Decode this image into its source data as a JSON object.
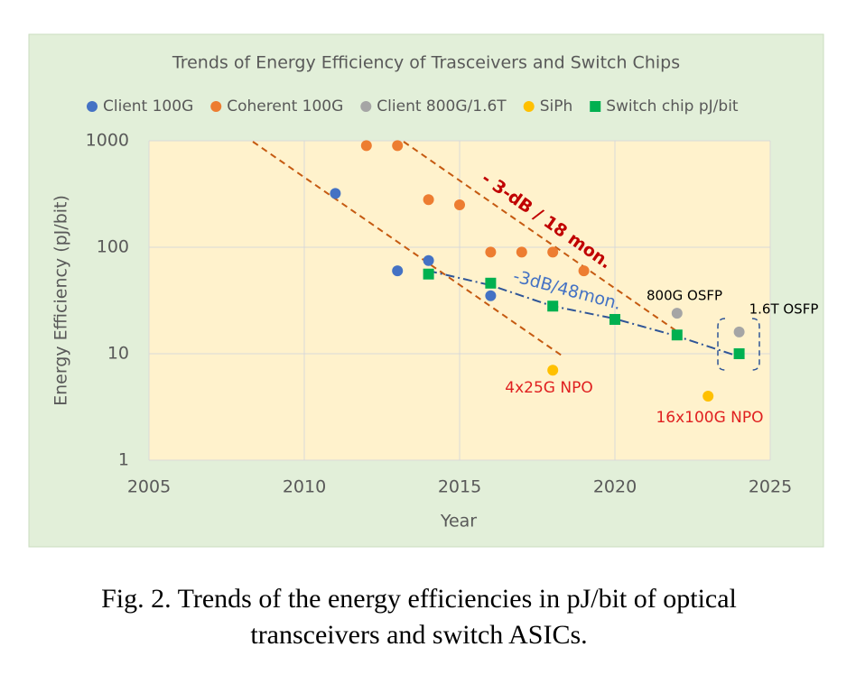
{
  "chart_data": {
    "type": "scatter",
    "title": "Trends of Energy Efficiency of Trasceivers and Switch Chips",
    "x_label": "Year",
    "y_label": "Energy Efficiency (pJ/bit)",
    "xlim": [
      2005,
      2025
    ],
    "xticks": [
      2005,
      2010,
      2015,
      2020,
      2025
    ],
    "ylim": [
      1,
      1000
    ],
    "yticks": [
      1,
      10,
      100,
      1000
    ],
    "log_y": true,
    "grid": true,
    "legend": "top",
    "series": [
      {
        "name": "Client 100G",
        "color": "#4472c4",
        "marker": "circle",
        "x": [
          2011,
          2013,
          2014,
          2016
        ],
        "values": [
          320,
          60,
          75,
          35
        ]
      },
      {
        "name": "Coherent 100G",
        "color": "#ed7d31",
        "marker": "circle",
        "x": [
          2012,
          2013,
          2014,
          2015,
          2016,
          2017,
          2018,
          2019
        ],
        "values": [
          900,
          900,
          280,
          250,
          90,
          90,
          90,
          60
        ]
      },
      {
        "name": "Client 800G/1.6T",
        "color": "#a5a5a5",
        "marker": "circle",
        "x": [
          2022,
          2024
        ],
        "values": [
          24,
          16
        ]
      },
      {
        "name": "SiPh",
        "color": "#ffc000",
        "marker": "circle",
        "x": [
          2018,
          2023
        ],
        "values": [
          7,
          4
        ]
      },
      {
        "name": "Switch chip pJ/bit",
        "color": "#00b050",
        "marker": "square",
        "x": [
          2014,
          2016,
          2018,
          2020,
          2022,
          2024
        ],
        "values": [
          56,
          46,
          28,
          21,
          15,
          10
        ]
      }
    ],
    "annotations": [
      "- 3-dB / 18 mon.",
      "-3dB/48mon.",
      "800G OSFP",
      "1.6T OSFP",
      "4x25G NPO",
      "16x100G NPO"
    ]
  },
  "caption": [
    "Fig. 2. Trends of the energy efficiencies in pJ/bit of optical",
    "transceivers and switch ASICs."
  ]
}
